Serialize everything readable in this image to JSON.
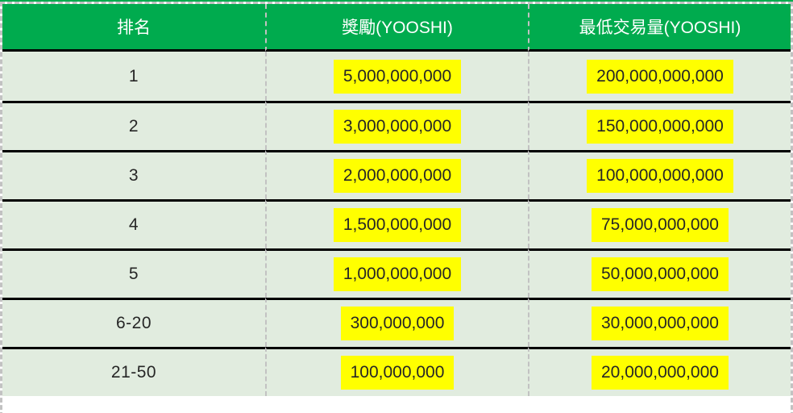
{
  "table": {
    "columns": [
      {
        "label": "排名"
      },
      {
        "label": "獎勵(YOOSHI)"
      },
      {
        "label": "最低交易量(YOOSHI)"
      }
    ],
    "rows": [
      {
        "rank": "1",
        "reward": "5,000,000,000",
        "min_volume": "200,000,000,000"
      },
      {
        "rank": "2",
        "reward": "3,000,000,000",
        "min_volume": "150,000,000,000"
      },
      {
        "rank": "3",
        "reward": "2,000,000,000",
        "min_volume": "100,000,000,000"
      },
      {
        "rank": "4",
        "reward": "1,500,000,000",
        "min_volume": "75,000,000,000"
      },
      {
        "rank": "5",
        "reward": "1,000,000,000",
        "min_volume": "50,000,000,000"
      },
      {
        "rank": "6-20",
        "reward": "300,000,000",
        "min_volume": "30,000,000,000"
      },
      {
        "rank": "21-50",
        "reward": "100,000,000",
        "min_volume": "20,000,000,000"
      }
    ],
    "colors": {
      "header_bg": "#00AB4E",
      "header_text": "#FFFFFF",
      "row_bg": "#E1ECDF",
      "highlight": "#FFFF00",
      "body_text": "#262626",
      "row_divider": "#000000",
      "dashed_border": "#C2C2C2",
      "page_bg": "#FFFFFF"
    }
  }
}
